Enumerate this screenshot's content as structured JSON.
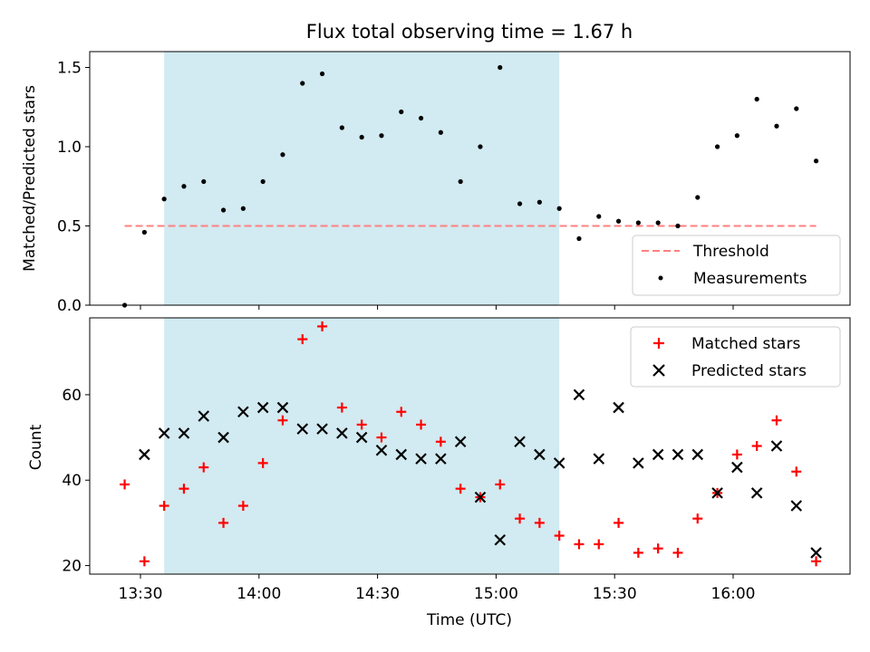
{
  "chart_data": {
    "title": "Flux total observing time = 1.67 h",
    "xlabel": "Time (UTC)",
    "x_ticks": [
      "13:30",
      "14:00",
      "14:30",
      "15:00",
      "15:30",
      "16:00"
    ],
    "shaded_region": {
      "start": "13:36",
      "end": "15:16",
      "color": "#add8e6"
    },
    "top": {
      "type": "scatter",
      "ylabel": "Matched/Predicted stars",
      "ylim": [
        0,
        1.6
      ],
      "y_ticks": [
        "0.0",
        "0.5",
        "1.0",
        "1.5"
      ],
      "legend_position": "lower-right",
      "threshold": {
        "name": "Threshold",
        "value": 0.5,
        "x_range": [
          "13:26",
          "16:21"
        ],
        "color": "#ff8080"
      },
      "series": [
        {
          "name": "Measurements",
          "color": "#000000",
          "points": [
            [
              "13:26",
              0.0
            ],
            [
              "13:31",
              0.46
            ],
            [
              "13:36",
              0.67
            ],
            [
              "13:41",
              0.75
            ],
            [
              "13:46",
              0.78
            ],
            [
              "13:51",
              0.6
            ],
            [
              "13:56",
              0.61
            ],
            [
              "14:01",
              0.78
            ],
            [
              "14:06",
              0.95
            ],
            [
              "14:11",
              1.4
            ],
            [
              "14:16",
              1.46
            ],
            [
              "14:21",
              1.12
            ],
            [
              "14:26",
              1.06
            ],
            [
              "14:31",
              1.07
            ],
            [
              "14:36",
              1.22
            ],
            [
              "14:41",
              1.18
            ],
            [
              "14:46",
              1.09
            ],
            [
              "14:51",
              0.78
            ],
            [
              "14:56",
              1.0
            ],
            [
              "15:01",
              1.5
            ],
            [
              "15:06",
              0.64
            ],
            [
              "15:11",
              0.65
            ],
            [
              "15:16",
              0.61
            ],
            [
              "15:21",
              0.42
            ],
            [
              "15:26",
              0.56
            ],
            [
              "15:31",
              0.53
            ],
            [
              "15:36",
              0.52
            ],
            [
              "15:41",
              0.52
            ],
            [
              "15:46",
              0.5
            ],
            [
              "15:51",
              0.68
            ],
            [
              "15:56",
              1.0
            ],
            [
              "16:01",
              1.07
            ],
            [
              "16:06",
              1.3
            ],
            [
              "16:11",
              1.13
            ],
            [
              "16:16",
              1.24
            ],
            [
              "16:21",
              0.91
            ]
          ]
        }
      ]
    },
    "bottom": {
      "type": "scatter",
      "ylabel": "Count",
      "ylim": [
        18,
        78
      ],
      "y_ticks": [
        "20",
        "40",
        "60"
      ],
      "legend_position": "upper-right",
      "series": [
        {
          "name": "Matched stars",
          "marker": "plus",
          "color": "#ff0000",
          "points": [
            [
              "13:26",
              39
            ],
            [
              "13:31",
              21
            ],
            [
              "13:36",
              34
            ],
            [
              "13:41",
              38
            ],
            [
              "13:46",
              43
            ],
            [
              "13:51",
              30
            ],
            [
              "13:56",
              34
            ],
            [
              "14:01",
              44
            ],
            [
              "14:06",
              54
            ],
            [
              "14:11",
              73
            ],
            [
              "14:16",
              76
            ],
            [
              "14:21",
              57
            ],
            [
              "14:26",
              53
            ],
            [
              "14:31",
              50
            ],
            [
              "14:36",
              56
            ],
            [
              "14:41",
              53
            ],
            [
              "14:46",
              49
            ],
            [
              "14:51",
              38
            ],
            [
              "14:56",
              36
            ],
            [
              "15:01",
              39
            ],
            [
              "15:06",
              31
            ],
            [
              "15:11",
              30
            ],
            [
              "15:16",
              27
            ],
            [
              "15:21",
              25
            ],
            [
              "15:26",
              25
            ],
            [
              "15:31",
              30
            ],
            [
              "15:36",
              23
            ],
            [
              "15:41",
              24
            ],
            [
              "15:46",
              23
            ],
            [
              "15:51",
              31
            ],
            [
              "15:56",
              37
            ],
            [
              "16:01",
              46
            ],
            [
              "16:06",
              48
            ],
            [
              "16:11",
              54
            ],
            [
              "16:16",
              42
            ],
            [
              "16:21",
              21
            ]
          ]
        },
        {
          "name": "Predicted stars",
          "marker": "x",
          "color": "#000000",
          "points": [
            [
              "13:31",
              46
            ],
            [
              "13:36",
              51
            ],
            [
              "13:41",
              51
            ],
            [
              "13:46",
              55
            ],
            [
              "13:51",
              50
            ],
            [
              "13:56",
              56
            ],
            [
              "14:01",
              57
            ],
            [
              "14:06",
              57
            ],
            [
              "14:11",
              52
            ],
            [
              "14:16",
              52
            ],
            [
              "14:21",
              51
            ],
            [
              "14:26",
              50
            ],
            [
              "14:31",
              47
            ],
            [
              "14:36",
              46
            ],
            [
              "14:41",
              45
            ],
            [
              "14:46",
              45
            ],
            [
              "14:51",
              49
            ],
            [
              "14:56",
              36
            ],
            [
              "15:01",
              26
            ],
            [
              "15:06",
              49
            ],
            [
              "15:11",
              46
            ],
            [
              "15:16",
              44
            ],
            [
              "15:21",
              60
            ],
            [
              "15:26",
              45
            ],
            [
              "15:31",
              57
            ],
            [
              "15:36",
              44
            ],
            [
              "15:41",
              46
            ],
            [
              "15:46",
              46
            ],
            [
              "15:51",
              46
            ],
            [
              "15:56",
              37
            ],
            [
              "16:01",
              43
            ],
            [
              "16:06",
              37
            ],
            [
              "16:11",
              48
            ],
            [
              "16:16",
              34
            ],
            [
              "16:21",
              23
            ]
          ]
        }
      ]
    }
  }
}
